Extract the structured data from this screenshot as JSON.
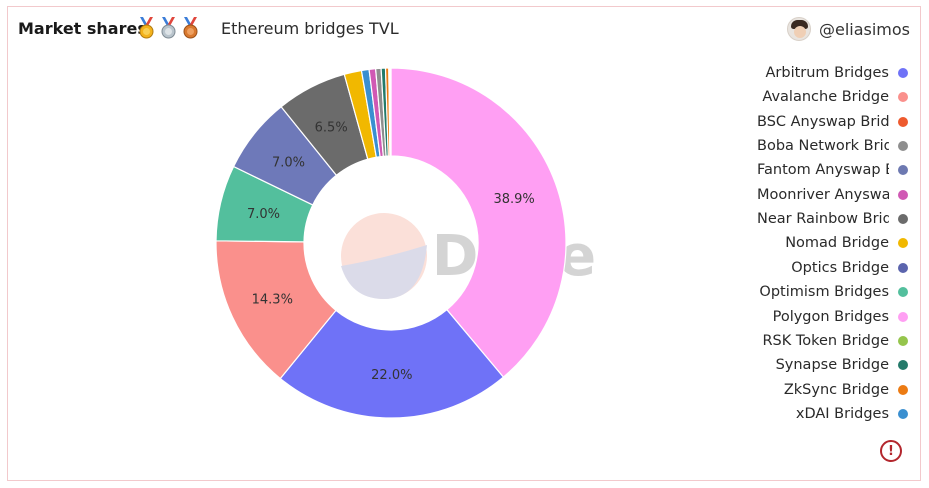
{
  "header": {
    "title": "Market shares",
    "medals": [
      "gold-medal-icon",
      "silver-medal-icon",
      "bronze-medal-icon"
    ],
    "subtitle": "Ethereum bridges TVL",
    "username": "@eliasimos"
  },
  "watermark": "Dune",
  "colors": {
    "border": "#f2c9cc",
    "info": "#b3262d"
  },
  "chart_data": {
    "type": "pie",
    "variant": "donut",
    "legend_position": "right",
    "slices": [
      {
        "label": "Polygon Bridges",
        "value": 38.9,
        "display": "38.9%",
        "color": "#ff9ff3"
      },
      {
        "label": "Arbitrum Bridges",
        "value": 22.0,
        "display": "22.0%",
        "color": "#6f72f7"
      },
      {
        "label": "Avalanche Bridge",
        "value": 14.3,
        "display": "14.3%",
        "color": "#fa908c"
      },
      {
        "label": "Optimism Bridges",
        "value": 7.0,
        "display": "7.0%",
        "color": "#53bf9d"
      },
      {
        "label": "Optics Bridge",
        "value": 7.0,
        "display": "7.0%",
        "color": "#6e79b9"
      },
      {
        "label": "Near Rainbow Bridge",
        "value": 6.5,
        "display": "6.5%",
        "color": "#6b6b6b"
      },
      {
        "label": "Nomad Bridge",
        "value": 1.6,
        "display": "",
        "color": "#f1b800"
      },
      {
        "label": "xDAI Bridges",
        "value": 0.7,
        "display": "",
        "color": "#3a8fd0"
      },
      {
        "label": "Moonriver Anyswap Bridge",
        "value": 0.6,
        "display": "",
        "color": "#d059b4"
      },
      {
        "label": "Boba Network Bridge",
        "value": 0.5,
        "display": "",
        "color": "#8e8e8e"
      },
      {
        "label": "Synapse Bridge",
        "value": 0.4,
        "display": "",
        "color": "#247a6a"
      },
      {
        "label": "ZkSync Bridge",
        "value": 0.3,
        "display": "",
        "color": "#ec7b13"
      },
      {
        "label": "BSC Anyswap Bridge",
        "value": 0.1,
        "display": "",
        "color": "#ee5a2e"
      },
      {
        "label": "Fantom Anyswap Bridge",
        "value": 0.05,
        "display": "",
        "color": "#6d79b1"
      },
      {
        "label": "RSK Token Bridge",
        "value": 0.05,
        "display": "",
        "color": "#95c54c"
      }
    ]
  },
  "legend": [
    {
      "label": "Arbitrum Bridges",
      "color": "#6f72f7"
    },
    {
      "label": "Avalanche Bridge",
      "color": "#fa908c"
    },
    {
      "label": "BSC Anyswap Bridge",
      "color": "#ee5a2e"
    },
    {
      "label": "Boba Network Bridge",
      "color": "#8e8e8e"
    },
    {
      "label": "Fantom Anyswap Bridge",
      "color": "#6d79b1"
    },
    {
      "label": "Moonriver Anyswap Bridge",
      "color": "#d059b4"
    },
    {
      "label": "Near Rainbow Bridge",
      "color": "#6b6b6b"
    },
    {
      "label": "Nomad Bridge",
      "color": "#f1b800"
    },
    {
      "label": "Optics Bridge",
      "color": "#5b64ad"
    },
    {
      "label": "Optimism Bridges",
      "color": "#53bf9d"
    },
    {
      "label": "Polygon Bridges",
      "color": "#ff9ff3"
    },
    {
      "label": "RSK Token Bridge",
      "color": "#95c54c"
    },
    {
      "label": "Synapse Bridge",
      "color": "#247a6a"
    },
    {
      "label": "ZkSync Bridge",
      "color": "#ec7b13"
    },
    {
      "label": "xDAI Bridges",
      "color": "#3a8fd0"
    }
  ],
  "info_icon": "warning-icon"
}
